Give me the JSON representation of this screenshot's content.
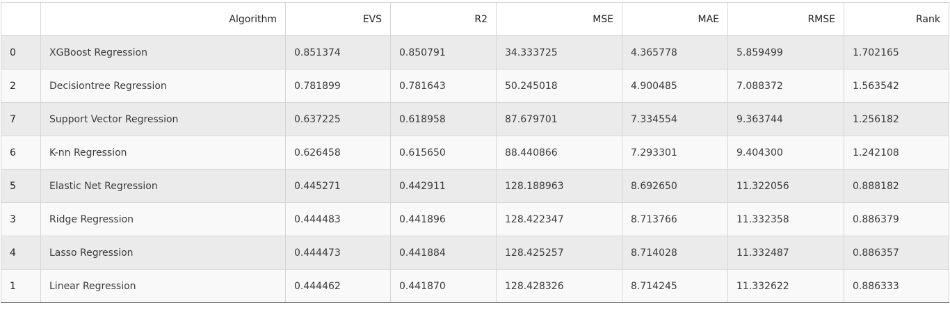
{
  "table": {
    "columns": [
      "",
      "Algorithm",
      "EVS",
      "R2",
      "MSE",
      "MAE",
      "RMSE",
      "Rank"
    ],
    "rows": [
      [
        "0",
        "XGBoost Regression",
        "0.851374",
        "0.850791",
        "34.333725",
        "4.365778",
        "5.859499",
        "1.702165"
      ],
      [
        "2",
        "Decisiontree Regression",
        "0.781899",
        "0.781643",
        "50.245018",
        "4.900485",
        "7.088372",
        "1.563542"
      ],
      [
        "7",
        "Support Vector Regression",
        "0.637225",
        "0.618958",
        "87.679701",
        "7.334554",
        "9.363744",
        "1.256182"
      ],
      [
        "6",
        "K-nn Regression",
        "0.626458",
        "0.615650",
        "88.440866",
        "7.293301",
        "9.404300",
        "1.242108"
      ],
      [
        "5",
        "Elastic Net Regression",
        "0.445271",
        "0.442911",
        "128.188963",
        "8.692650",
        "11.322056",
        "0.888182"
      ],
      [
        "3",
        "Ridge Regression",
        "0.444483",
        "0.441896",
        "128.422347",
        "8.713766",
        "11.332358",
        "0.886379"
      ],
      [
        "4",
        "Lasso Regression",
        "0.444473",
        "0.441884",
        "128.425257",
        "8.714028",
        "11.332487",
        "0.886357"
      ],
      [
        "1",
        "Linear Regression",
        "0.444462",
        "0.441870",
        "128.428326",
        "8.714245",
        "11.332622",
        "0.886333"
      ]
    ]
  }
}
